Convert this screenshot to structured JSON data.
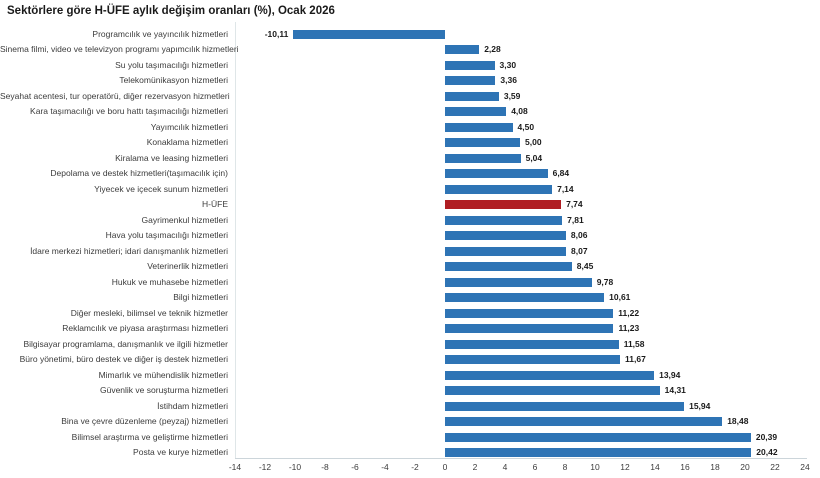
{
  "title": "Sektörlere göre H-ÜFE aylık değişim oranları (%), Ocak 2026",
  "colors": {
    "bar": "#2E74B5",
    "highlight": "#B01E23",
    "axis_line": "#ccd5da",
    "plot_border_line": "#dfe6e8",
    "category_text": "#3c3c3c",
    "value_text": "#1a1a1a"
  },
  "chart_data": {
    "type": "bar",
    "orientation": "horizontal",
    "title": "Sektörlere göre H-ÜFE aylık değişim oranları (%), Ocak 2026",
    "categories": [
      "Programcılık ve yayıncılık hizmetleri",
      "Sinema filmi, video ve televizyon programı yapımcılık hizmetleri",
      "Su yolu taşımacılığı hizmetleri",
      "Telekomünikasyon hizmetleri",
      "Seyahat acentesi, tur operatörü, diğer rezervasyon hizmetleri",
      "Kara taşımacılığı ve boru hattı taşımacılığı hizmetleri",
      "Yayımcılık hizmetleri",
      "Konaklama hizmetleri",
      "Kiralama ve leasing hizmetleri",
      "Depolama ve destek hizmetleri(taşımacılık için)",
      "Yiyecek ve içecek sunum hizmetleri",
      "H-ÜFE",
      "Gayrimenkul hizmetleri",
      "Hava yolu taşımacılığı hizmetleri",
      "İdare merkezi hizmetleri; idari danışmanlık hizmetleri",
      "Veterinerlik hizmetleri",
      "Hukuk ve muhasebe hizmetleri",
      "Bilgi hizmetleri",
      "Diğer mesleki, bilimsel ve teknik hizmetler",
      "Reklamcılık ve piyasa araştırması hizmetleri",
      "Bilgisayar programlama, danışmanlık ve ilgili hizmetler",
      "Büro yönetimi, büro destek ve diğer iş destek hizmetleri",
      "Mimarlık ve mühendislik hizmetleri",
      "Güvenlik ve soruşturma hizmetleri",
      "İstihdam hizmetleri",
      "Bina ve çevre düzenleme (peyzaj) hizmetleri",
      "Bilimsel araştırma ve geliştirme hizmetleri",
      "Posta ve kurye hizmetleri"
    ],
    "values": [
      -10.11,
      2.28,
      3.3,
      3.36,
      3.59,
      4.08,
      4.5,
      5.0,
      5.04,
      6.84,
      7.14,
      7.74,
      7.81,
      8.06,
      8.07,
      8.45,
      9.78,
      10.61,
      11.22,
      11.23,
      11.58,
      11.67,
      13.94,
      14.31,
      15.94,
      18.48,
      20.39,
      20.42
    ],
    "value_labels": [
      "-10,11",
      "2,28",
      "3,30",
      "3,36",
      "3,59",
      "4,08",
      "4,50",
      "5,00",
      "5,04",
      "6,84",
      "7,14",
      "7,74",
      "7,81",
      "8,06",
      "8,07",
      "8,45",
      "9,78",
      "10,61",
      "11,22",
      "11,23",
      "11,58",
      "11,67",
      "13,94",
      "14,31",
      "15,94",
      "18,48",
      "20,39",
      "20,42"
    ],
    "highlight_category": "H-ÜFE",
    "highlight_index": 11,
    "xlabel": "",
    "ylabel": "",
    "xlim": [
      -14,
      24
    ],
    "x_ticks": [
      -14,
      -12,
      -10,
      -8,
      -6,
      -4,
      -2,
      0,
      2,
      4,
      6,
      8,
      10,
      12,
      14,
      16,
      18,
      20,
      22,
      24
    ],
    "grid": "off",
    "legend": "none"
  }
}
